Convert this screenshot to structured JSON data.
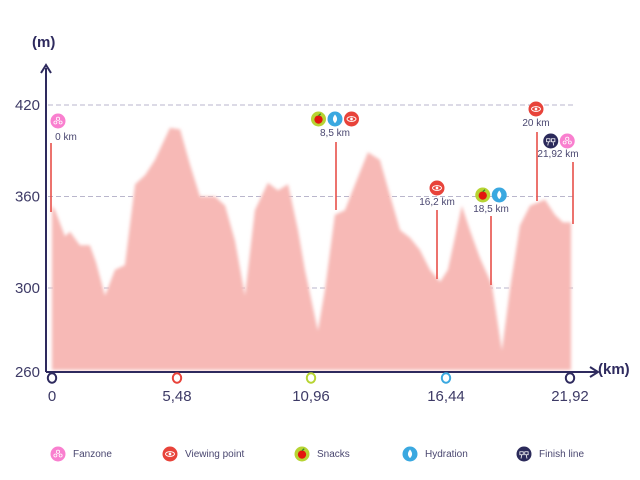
{
  "chart_data": {
    "type": "area",
    "title": "",
    "ylabel": "(m)",
    "xlabel": "(km)",
    "y_ticks": [
      420,
      360,
      300,
      260
    ],
    "x_ticks": [
      "0",
      "5,48",
      "10,96",
      "16,44",
      "21,92"
    ],
    "x_tick_marker_colors": [
      "#2e2a5e",
      "#e8433a",
      "#b7d433",
      "#3aa8e0",
      "#2e2a5e"
    ],
    "ylim": [
      260,
      440
    ],
    "xlim": [
      0,
      21.92
    ],
    "grid": "dashed horizontal at 420, 360, 300",
    "fill_color": "#f7b9b6",
    "series": [
      {
        "x": [
          0,
          0.13,
          0.55,
          0.76,
          1.18,
          1.6,
          1.86,
          2.24,
          2.66,
          3.08,
          3.51,
          3.93,
          4.35,
          4.98,
          5.41,
          5.83,
          6.25,
          6.88,
          7.31,
          7.73,
          8.15,
          8.57,
          9.12,
          9.54,
          9.97,
          10.39,
          10.68,
          11.23,
          11.53,
          11.95,
          12.37,
          12.8,
          13.34,
          13.85,
          14.27,
          14.7,
          15.12,
          15.54,
          15.96,
          16.39,
          16.72,
          17.31,
          17.65,
          18.07,
          18.58,
          19.0,
          19.34,
          19.76,
          20.19,
          20.82,
          21.24,
          21.58,
          21.92
        ],
        "y": [
          354,
          351,
          334,
          337,
          328,
          328,
          317,
          295,
          312,
          315,
          368,
          374,
          384,
          405,
          404,
          381,
          360,
          360,
          354,
          331,
          295,
          351,
          369,
          364,
          368,
          338,
          312,
          272,
          299,
          348,
          351,
          368,
          389,
          384,
          361,
          338,
          333,
          325,
          312,
          304,
          312,
          354,
          338,
          320,
          302,
          259,
          299,
          341,
          354,
          358,
          348,
          343,
          343
        ]
      }
    ],
    "markers": [
      {
        "label": "0 km",
        "icons": [
          "fanzone"
        ]
      },
      {
        "label": "8,5 km",
        "icons": [
          "snacks",
          "hydration",
          "viewing"
        ]
      },
      {
        "label": "16,2 km",
        "icons": [
          "viewing"
        ]
      },
      {
        "label": "18,5 km",
        "icons": [
          "snacks",
          "hydration"
        ]
      },
      {
        "label": "20 km",
        "icons": [
          "viewing"
        ]
      },
      {
        "label": "21,92 km",
        "icons": [
          "finish",
          "fanzone"
        ]
      }
    ],
    "legend": [
      {
        "key": "fanzone",
        "label": "Fanzone",
        "color": "#f97fcf"
      },
      {
        "key": "viewing",
        "label": "Viewing point",
        "color": "#e8433a"
      },
      {
        "key": "snacks",
        "label": "Snacks",
        "color": "#b7d433"
      },
      {
        "key": "hydration",
        "label": "Hydration",
        "color": "#3aa8e0"
      },
      {
        "key": "finish",
        "label": "Finish line",
        "color": "#2b2a5a"
      }
    ],
    "legend_position": "bottom"
  }
}
